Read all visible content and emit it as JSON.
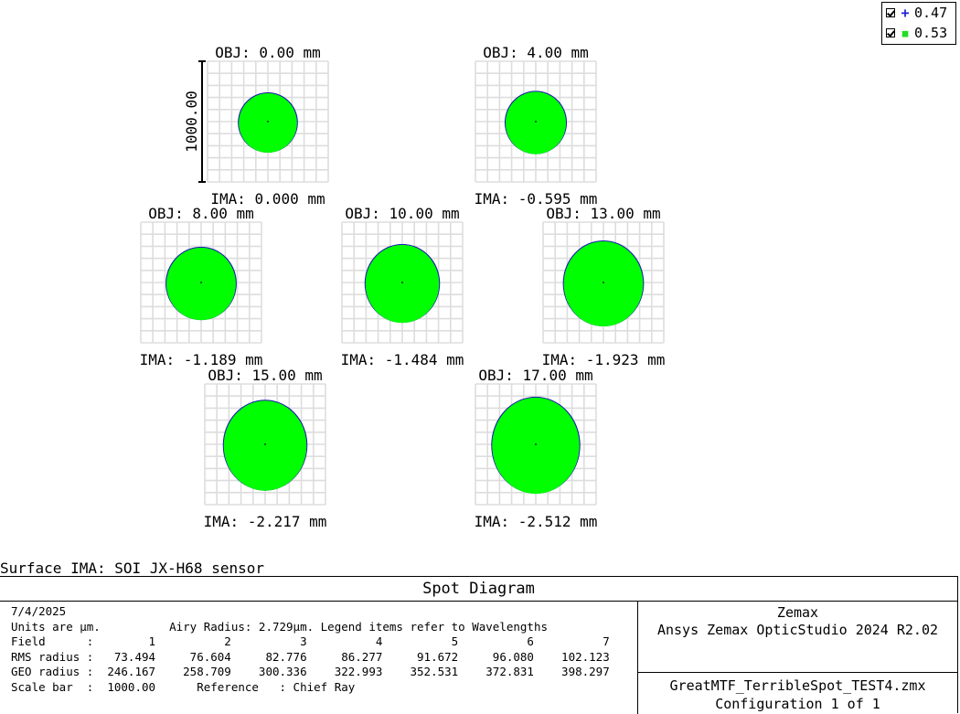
{
  "legend": [
    {
      "symbol": "+",
      "label": "0.47",
      "color": "#1f1fd6"
    },
    {
      "symbol": "■",
      "label": "0.53",
      "color": "#22dd22"
    }
  ],
  "chart_data": {
    "type": "scatter",
    "title": "Spot Diagram",
    "spot_color": "#00ff00",
    "spot_edge_color": "#1a1ab0",
    "grid_color": "#dddddd",
    "scale_bar_label": "1000.00",
    "fields": [
      {
        "obj": "OBJ: 0.00 mm",
        "ima": "IMA: 0.000 mm",
        "rms": 73.494,
        "geo": 246.167
      },
      {
        "obj": "OBJ: 4.00 mm",
        "ima": "IMA: -0.595 mm",
        "rms": 76.604,
        "geo": 258.709
      },
      {
        "obj": "OBJ: 8.00 mm",
        "ima": "IMA: -1.189 mm",
        "rms": 82.776,
        "geo": 300.336
      },
      {
        "obj": "OBJ: 10.00 mm",
        "ima": "IMA: -1.484 mm",
        "rms": 86.277,
        "geo": 322.993
      },
      {
        "obj": "OBJ: 13.00 mm",
        "ima": "IMA: -1.923 mm",
        "rms": 91.672,
        "geo": 352.531
      },
      {
        "obj": "OBJ: 15.00 mm",
        "ima": "IMA: -2.217 mm",
        "rms": 96.08,
        "geo": 372.831
      },
      {
        "obj": "OBJ: 17.00 mm",
        "ima": "IMA: -2.512 mm",
        "rms": 102.123,
        "geo": 398.297
      }
    ]
  },
  "surface_label": "Surface IMA: SOI JX-H68 sensor",
  "panel": {
    "title": "Spot Diagram",
    "lines": [
      "7/4/2025",
      "Units are µm.          Airy Radius: 2.729µm. Legend items refer to Wavelengths",
      "Field      :        1          2          3          4          5          6          7",
      "RMS radius :   73.494     76.604     82.776     86.277     91.672     96.080    102.123",
      "GEO radius :  246.167    258.709    300.336    322.993    352.531    372.831    398.297",
      "Scale bar  :  1000.00      Reference   : Chief Ray"
    ],
    "company": "Zemax",
    "product": "Ansys Zemax OpticStudio 2024 R2.02",
    "file": "GreatMTF_TerribleSpot_TEST4.zmx",
    "config": "Configuration 1 of 1"
  }
}
